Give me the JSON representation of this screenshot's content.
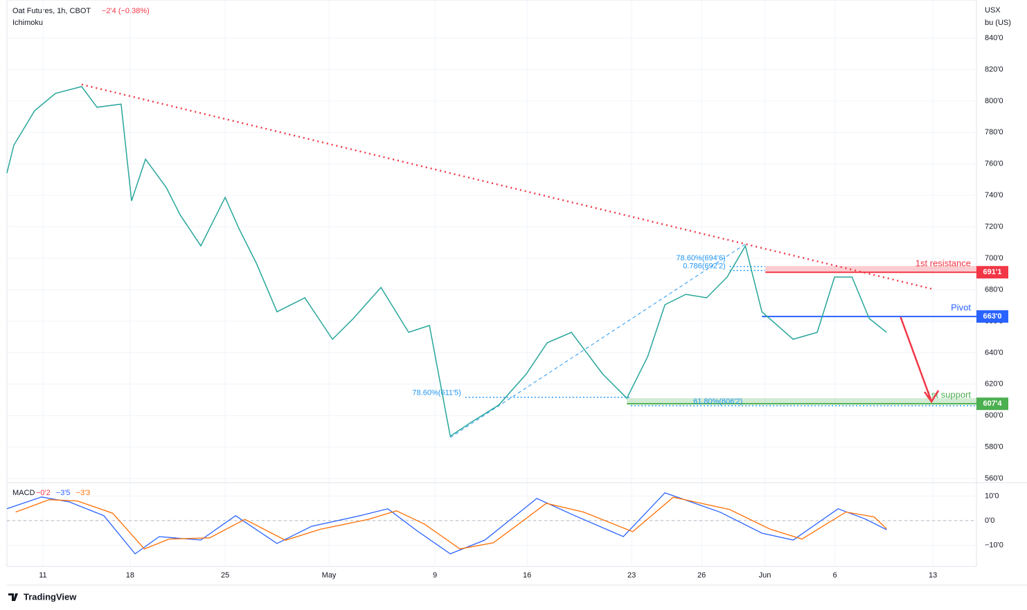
{
  "chart_data": [
    {
      "type": "line",
      "title": "Oat Futures, 1h, CBOT",
      "change": "−2'4 (−0.38%)",
      "indicator": "Ichimoku",
      "y_unit": [
        "USX",
        "bu (US)"
      ],
      "color": "#26a69a",
      "x": [
        0,
        0.39,
        1.57,
        2.75,
        4.24,
        5.11,
        6.48,
        7.07,
        7.86,
        9.04,
        9.82,
        11.0,
        12.38,
        13.16,
        14.15,
        15.32,
        16.9,
        18.47,
        19.65,
        21.22,
        22.79,
        23.97,
        25.15,
        26.33,
        27.9,
        29.47,
        30.65,
        32.02,
        33.79,
        35.17,
        36.35,
        37.33,
        38.51,
        39.69,
        40.86,
        41.89,
        42.83,
        44.6,
        45.97,
        46.95,
        47.94,
        48.92,
        49.9
      ],
      "values": [
        754.2,
        771.8,
        793.8,
        804.8,
        809.2,
        796,
        798,
        736.5,
        763,
        745,
        727.7,
        707.9,
        738.7,
        718.9,
        696.9,
        666,
        674.9,
        648.5,
        661.7,
        681.5,
        652.9,
        657.3,
        586.9,
        595.7,
        606.7,
        626.5,
        646.3,
        652.9,
        626.5,
        611,
        637.5,
        670.5,
        677.1,
        674.9,
        688.1,
        707.9,
        666,
        648.5,
        652.9,
        688.1,
        688.1,
        661.7,
        652.9
      ],
      "xlim": [
        0,
        55
      ],
      "xticks": [
        {
          "value": 2.04,
          "label": "11"
        },
        {
          "value": 6.99,
          "label": "18"
        },
        {
          "value": 12.38,
          "label": "25"
        },
        {
          "value": 18.27,
          "label": "May"
        },
        {
          "value": 24.28,
          "label": "9"
        },
        {
          "value": 29.51,
          "label": "16"
        },
        {
          "value": 35.44,
          "label": "23"
        },
        {
          "value": 39.41,
          "label": "26"
        },
        {
          "value": 43.0,
          "label": "Jun"
        },
        {
          "value": 46.97,
          "label": "6"
        },
        {
          "value": 52.53,
          "label": "13"
        }
      ],
      "ylim": [
        557.4,
        864.2
      ],
      "yticks": [
        {
          "value": 560,
          "label": "560'0"
        },
        {
          "value": 580,
          "label": "580'0"
        },
        {
          "value": 600,
          "label": "600'0"
        },
        {
          "value": 620,
          "label": "620'0"
        },
        {
          "value": 640,
          "label": "640'0"
        },
        {
          "value": 660,
          "label": "660'0"
        },
        {
          "value": 680,
          "label": "680'0"
        },
        {
          "value": 700,
          "label": "700'0"
        },
        {
          "value": 720,
          "label": "720'0"
        },
        {
          "value": 740,
          "label": "740'0"
        },
        {
          "value": 760,
          "label": "760'0"
        },
        {
          "value": 780,
          "label": "780'0"
        },
        {
          "value": 800,
          "label": "800'0"
        },
        {
          "value": 820,
          "label": "820'0"
        },
        {
          "value": 840,
          "label": "840'0"
        }
      ],
      "levels": [
        {
          "label": "1st resistance",
          "value": 691.125,
          "price_label": "691'1",
          "color": "#f23645",
          "x": [
            43.03,
            55
          ]
        },
        {
          "label": "Pivot",
          "value": 663,
          "price_label": "663'0",
          "color": "#2962ff",
          "x": [
            42.83,
            55
          ]
        },
        {
          "label": "1st support",
          "value": 607.5,
          "price_label": "607'4",
          "color": "#4caf50",
          "x": [
            35.17,
            55
          ]
        }
      ],
      "trendline": {
        "color": "#f23645",
        "x": [
          4.24,
          52.45
        ],
        "values": [
          810.5,
          680.6
        ]
      },
      "arrow": {
        "color": "#f23645",
        "x": [
          50.7,
          52.45
        ],
        "values": [
          662.6,
          608.9
        ]
      },
      "fib_swing": {
        "color": "#2196f3",
        "x": [
          25.15,
          41.89
        ],
        "values": [
          586,
          709
        ]
      },
      "fib_lines": [
        {
          "label": "78.60%(611'5)",
          "value": 611.625,
          "x": [
            26.0,
            35.4
          ]
        },
        {
          "label": "61.80%(606'2)",
          "value": 606.25,
          "x": [
            35.4,
            55
          ]
        },
        {
          "label": "78.60%(694'6)",
          "value": 694.75,
          "x": [
            41.0,
            43.0
          ]
        },
        {
          "label": "0.786(692'2)",
          "value": 692.25,
          "x": [
            41.0,
            43.0
          ]
        }
      ]
    },
    {
      "type": "line",
      "title": "MACD",
      "legend_values": [
        {
          "text": "−0'2",
          "color": "#f23645"
        },
        {
          "text": "−3'5",
          "color": "#2962ff"
        },
        {
          "text": "−3'3",
          "color": "#ff6d00"
        }
      ],
      "ylim": [
        -18.6,
        14.6
      ],
      "yticks": [
        {
          "value": 10,
          "label": "10'0"
        },
        {
          "value": 0,
          "label": "0'0"
        },
        {
          "value": -10,
          "label": "−10'0"
        }
      ],
      "series": [
        {
          "color": "#2962ff",
          "x": [
            0,
            1.96,
            3.54,
            5.5,
            7.27,
            8.64,
            11.0,
            12.97,
            15.32,
            17.29,
            20.04,
            21.61,
            23.18,
            25.15,
            27.11,
            30.06,
            32.22,
            34.97,
            37.33,
            40.47,
            42.83,
            44.6,
            47.15,
            48.72,
            49.9
          ],
          "values": [
            4.8,
            9.6,
            7.6,
            2,
            -13.5,
            -6.5,
            -7.9,
            2,
            -9.3,
            -2.3,
            2,
            4.8,
            -3.7,
            -13.5,
            -7.9,
            9,
            2,
            -6.5,
            11.3,
            3.4,
            -5.1,
            -7.9,
            4.8,
            0.6,
            -3.7
          ]
        },
        {
          "color": "#ff6d00",
          "x": [
            0.5,
            2.4,
            4.0,
            6.0,
            7.8,
            9.2,
            11.5,
            13.5,
            15.8,
            17.8,
            20.5,
            22.1,
            23.7,
            25.7,
            27.6,
            30.6,
            32.7,
            35.5,
            37.8,
            41.0,
            43.3,
            45.1,
            47.6,
            49.2,
            49.9
          ],
          "values": [
            3.5,
            8.5,
            8,
            3,
            -11.5,
            -7.5,
            -7,
            0.5,
            -8,
            -3.5,
            0.5,
            4,
            -1.5,
            -11.5,
            -9,
            7,
            3.5,
            -4.5,
            9.5,
            4.5,
            -3.5,
            -7.5,
            3.5,
            1.5,
            -3.3
          ]
        }
      ]
    }
  ],
  "footer": "TradingView"
}
